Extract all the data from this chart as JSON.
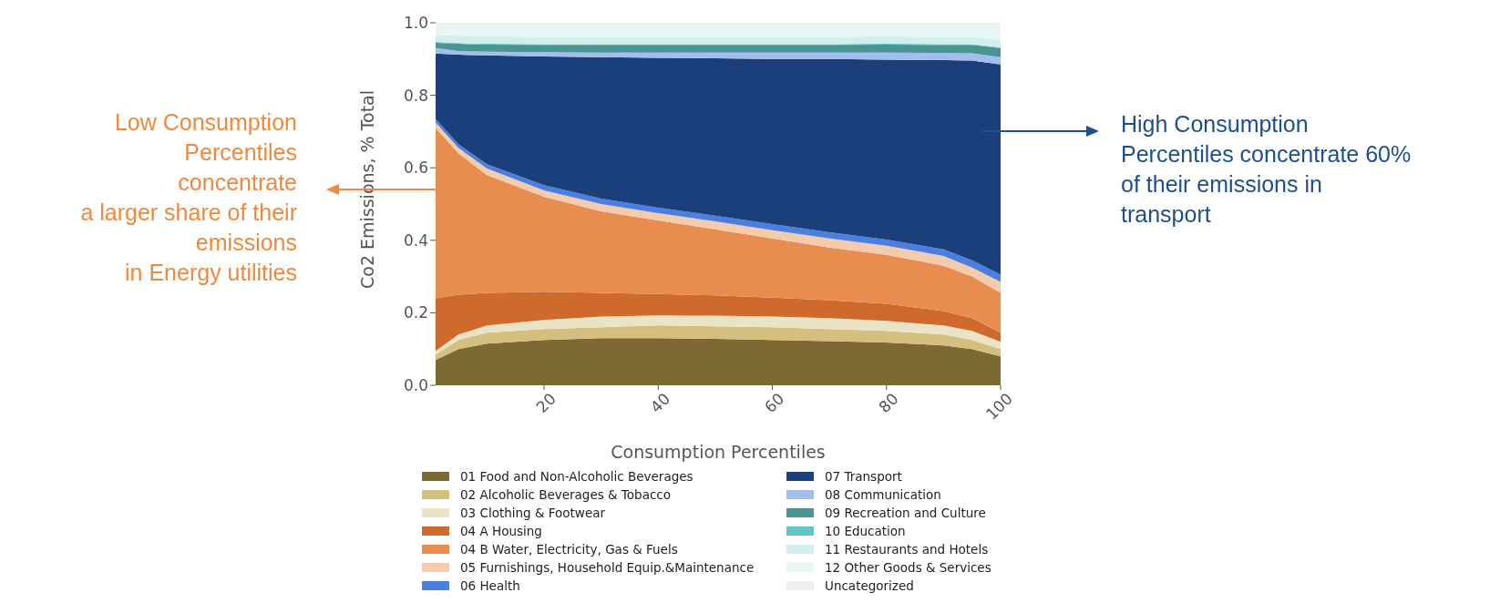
{
  "chart_data": {
    "type": "area",
    "stacked": true,
    "xlabel": "Consumption Percentiles",
    "ylabel": "Co2 Emissions, % Total",
    "legend": "bottom",
    "x": [
      1,
      5,
      10,
      20,
      30,
      40,
      50,
      60,
      70,
      80,
      90,
      95,
      100
    ],
    "xlim": [
      1,
      100
    ],
    "xticks": [
      20,
      40,
      60,
      80,
      100
    ],
    "ylim": [
      0,
      1
    ],
    "yticks": [
      {
        "value": 0,
        "label": "0.0"
      },
      0.2,
      0.4,
      0.6,
      0.8,
      {
        "value": 1,
        "label": "1.0"
      }
    ],
    "annotations": [
      "Low Consumption\nPercentiles\nconcentrate\na larger share of their\nemissions\nin Energy utilities",
      "High Consumption\nPercentiles concentrate 60%\nof their emissions in\ntransport"
    ],
    "series": [
      {
        "name": "01 Food and Non-Alcoholic Beverages",
        "color": "#7d6a33",
        "values": [
          0.07,
          0.1,
          0.115,
          0.125,
          0.13,
          0.13,
          0.128,
          0.125,
          0.122,
          0.118,
          0.11,
          0.1,
          0.08
        ]
      },
      {
        "name": "02 Alcoholic Beverages & Tobacco",
        "color": "#d4bf7f",
        "values": [
          0.015,
          0.025,
          0.03,
          0.03,
          0.03,
          0.035,
          0.035,
          0.035,
          0.033,
          0.032,
          0.03,
          0.025,
          0.02
        ]
      },
      {
        "name": "03 Clothing & Footwear",
        "color": "#ebe3c6",
        "values": [
          0.01,
          0.015,
          0.02,
          0.025,
          0.03,
          0.028,
          0.029,
          0.03,
          0.03,
          0.028,
          0.025,
          0.025,
          0.02
        ]
      },
      {
        "name": "04 A Housing",
        "color": "#cf6a2d",
        "values": [
          0.145,
          0.11,
          0.09,
          0.078,
          0.065,
          0.059,
          0.056,
          0.052,
          0.05,
          0.047,
          0.04,
          0.035,
          0.025
        ]
      },
      {
        "name": "04 B Water, Electricity, Gas & Fuels",
        "color": "#e88d4f",
        "values": [
          0.47,
          0.39,
          0.325,
          0.262,
          0.225,
          0.203,
          0.182,
          0.163,
          0.145,
          0.135,
          0.125,
          0.115,
          0.11
        ]
      },
      {
        "name": "05 Furnishings, Household Equip.&Maintenance",
        "color": "#f4cbac",
        "values": [
          0.015,
          0.015,
          0.018,
          0.018,
          0.02,
          0.02,
          0.022,
          0.023,
          0.025,
          0.025,
          0.027,
          0.025,
          0.03
        ]
      },
      {
        "name": "06 Health",
        "color": "#4a7fdf",
        "values": [
          0.01,
          0.01,
          0.012,
          0.014,
          0.015,
          0.015,
          0.016,
          0.017,
          0.017,
          0.017,
          0.018,
          0.02,
          0.02
        ]
      },
      {
        "name": "07 Transport",
        "color": "#1b3f7a",
        "values": [
          0.18,
          0.247,
          0.3,
          0.355,
          0.39,
          0.413,
          0.434,
          0.455,
          0.478,
          0.496,
          0.522,
          0.551,
          0.58
        ]
      },
      {
        "name": "08 Communication",
        "color": "#a3bdec",
        "values": [
          0.015,
          0.01,
          0.01,
          0.012,
          0.013,
          0.015,
          0.016,
          0.018,
          0.018,
          0.02,
          0.02,
          0.02,
          0.02
        ]
      },
      {
        "name": "09 Recreation and Culture",
        "color": "#4a9494",
        "values": [
          0.015,
          0.02,
          0.02,
          0.02,
          0.021,
          0.021,
          0.021,
          0.021,
          0.021,
          0.022,
          0.022,
          0.023,
          0.025
        ]
      },
      {
        "name": "10 Education",
        "color": "#62c6c6",
        "values": [
          0.002,
          0.002,
          0.002,
          0.002,
          0.002,
          0.002,
          0.002,
          0.002,
          0.002,
          0.002,
          0.002,
          0.002,
          0.002
        ]
      },
      {
        "name": "11 Restaurants and Hotels",
        "color": "#d2eeee",
        "values": [
          0.02,
          0.02,
          0.02,
          0.02,
          0.02,
          0.02,
          0.02,
          0.02,
          0.02,
          0.02,
          0.02,
          0.02,
          0.02
        ]
      },
      {
        "name": "12 Other Goods & Services",
        "color": "#e8f6f6",
        "values": [
          0.028,
          0.031,
          0.033,
          0.034,
          0.034,
          0.034,
          0.034,
          0.034,
          0.034,
          0.033,
          0.034,
          0.034,
          0.043
        ]
      },
      {
        "name": "Uncategorized",
        "color": "#efefef",
        "values": [
          0.005,
          0.005,
          0.005,
          0.005,
          0.005,
          0.005,
          0.005,
          0.005,
          0.005,
          0.005,
          0.005,
          0.005,
          0.005
        ]
      }
    ]
  }
}
